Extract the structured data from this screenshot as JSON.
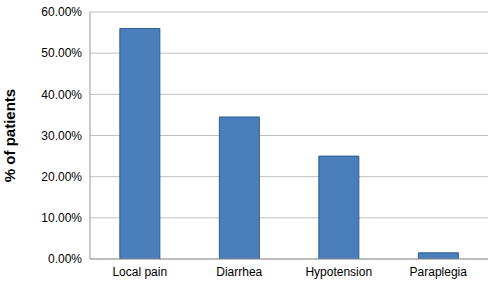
{
  "chart_data": {
    "type": "bar",
    "y_label": "% of patients",
    "categories": [
      "Local pain",
      "Diarrhea",
      "Hypotension",
      "Paraplegia"
    ],
    "values": [
      56,
      34.5,
      25,
      1.5
    ],
    "color": "#4a7ebb",
    "ylim": [
      0,
      60
    ],
    "yticks": [
      {
        "value": 0,
        "label": "0.00%"
      },
      {
        "value": 10,
        "label": "10.00%"
      },
      {
        "value": 20,
        "label": "20.00%"
      },
      {
        "value": 30,
        "label": "30.00%"
      },
      {
        "value": 40,
        "label": "40.00%"
      },
      {
        "value": 50,
        "label": "50.00%"
      },
      {
        "value": 60,
        "label": "60.00%"
      }
    ],
    "grid": true
  }
}
